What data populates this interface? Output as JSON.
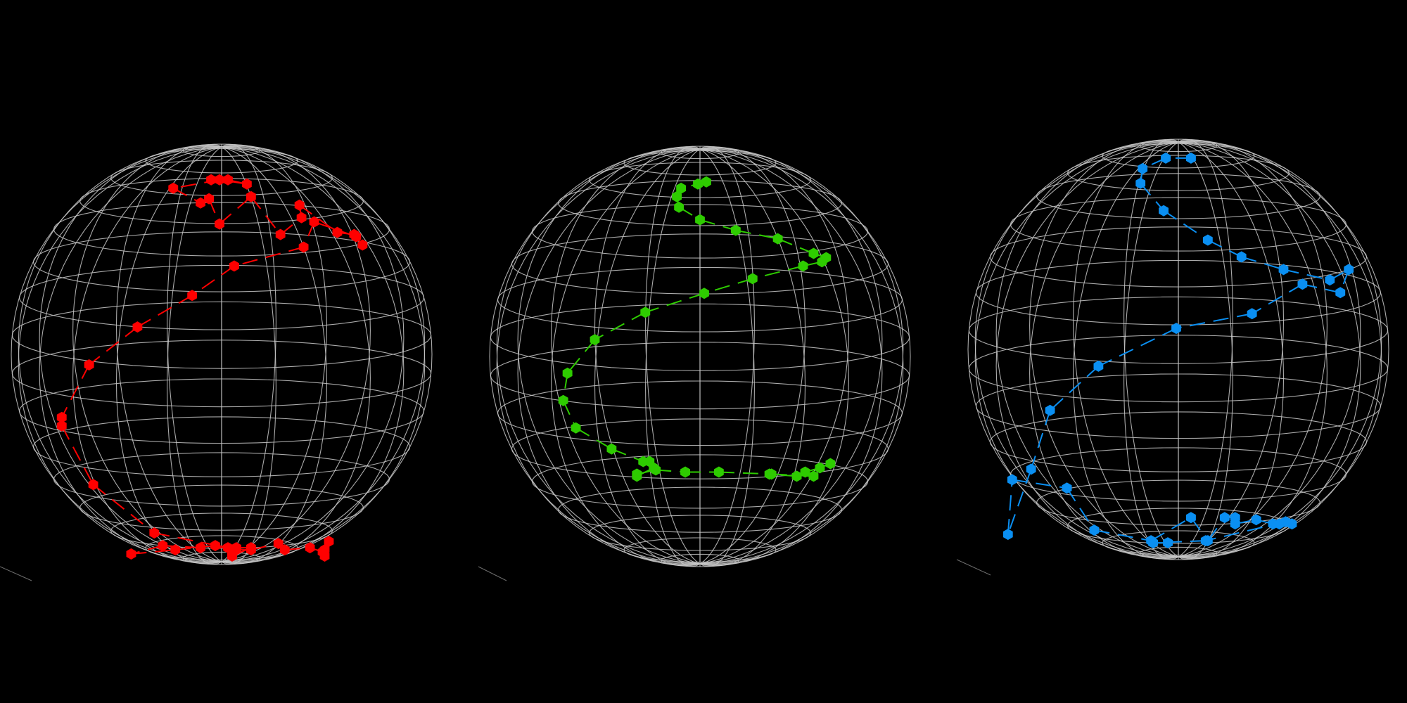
{
  "background_color": "#000000",
  "wireframe_color": "#c8c8c8",
  "corner_tick_color": "#6e6e6e",
  "marker_shape": "hexagon",
  "line_style": "dashed",
  "grid": {
    "latitude_lines": 17,
    "longitude_lines": 24
  },
  "spheres": [
    {
      "name": "red-sphere",
      "color": "#ff0000",
      "points": [
        [
          -0.05,
          -0.83
        ],
        [
          0.03,
          -0.83
        ],
        [
          0.12,
          -0.81
        ],
        [
          -0.01,
          -0.83
        ],
        [
          -0.23,
          -0.79
        ],
        [
          -0.1,
          -0.72
        ],
        [
          -0.06,
          -0.74
        ],
        [
          -0.01,
          -0.62
        ],
        [
          0.14,
          -0.75
        ],
        [
          0.28,
          -0.57
        ],
        [
          0.38,
          -0.65
        ],
        [
          0.37,
          -0.71
        ],
        [
          0.55,
          -0.58
        ],
        [
          0.63,
          -0.57
        ],
        [
          0.67,
          -0.52
        ],
        [
          0.64,
          -0.56
        ],
        [
          0.44,
          -0.63
        ],
        [
          0.39,
          -0.51
        ],
        [
          0.06,
          -0.42
        ],
        [
          -0.14,
          -0.28
        ],
        [
          -0.4,
          -0.13
        ],
        [
          -0.63,
          0.05
        ],
        [
          -0.76,
          0.3
        ],
        [
          -0.76,
          0.34
        ],
        [
          -0.61,
          0.62
        ],
        [
          -0.32,
          0.85
        ],
        [
          0.03,
          0.92
        ],
        [
          -0.1,
          0.92
        ],
        [
          -0.28,
          0.91
        ],
        [
          -0.43,
          0.95
        ],
        [
          -0.22,
          0.93
        ],
        [
          -0.03,
          0.91
        ],
        [
          0.07,
          0.92
        ],
        [
          0.14,
          0.92
        ],
        [
          0.05,
          0.96
        ],
        [
          0.07,
          0.93
        ],
        [
          0.14,
          0.93
        ],
        [
          0.27,
          0.9
        ],
        [
          0.3,
          0.93
        ],
        [
          0.42,
          0.92
        ],
        [
          0.48,
          0.94
        ],
        [
          0.51,
          0.89
        ],
        [
          0.49,
          0.93
        ],
        [
          0.49,
          0.96
        ]
      ]
    },
    {
      "name": "green-sphere",
      "color": "#2ecc00",
      "points": [
        [
          -0.01,
          -0.82
        ],
        [
          0.03,
          -0.83
        ],
        [
          -0.09,
          -0.8
        ],
        [
          -0.11,
          -0.76
        ],
        [
          -0.1,
          -0.71
        ],
        [
          0.0,
          -0.65
        ],
        [
          0.17,
          -0.6
        ],
        [
          0.37,
          -0.56
        ],
        [
          0.54,
          -0.49
        ],
        [
          0.6,
          -0.47
        ],
        [
          0.58,
          -0.45
        ],
        [
          0.49,
          -0.43
        ],
        [
          0.25,
          -0.37
        ],
        [
          0.02,
          -0.3
        ],
        [
          -0.26,
          -0.21
        ],
        [
          -0.5,
          -0.08
        ],
        [
          -0.63,
          0.08
        ],
        [
          -0.65,
          0.21
        ],
        [
          -0.59,
          0.34
        ],
        [
          -0.42,
          0.44
        ],
        [
          -0.27,
          0.5
        ],
        [
          -0.24,
          0.5
        ],
        [
          -0.22,
          0.53
        ],
        [
          -0.3,
          0.57
        ],
        [
          -0.3,
          0.56
        ],
        [
          -0.21,
          0.54
        ],
        [
          -0.07,
          0.55
        ],
        [
          0.09,
          0.55
        ],
        [
          0.34,
          0.56
        ],
        [
          0.54,
          0.57
        ],
        [
          0.5,
          0.55
        ],
        [
          0.57,
          0.53
        ],
        [
          0.62,
          0.51
        ],
        [
          0.46,
          0.57
        ],
        [
          0.33,
          0.56
        ]
      ]
    },
    {
      "name": "blue-sphere",
      "color": "#0a8ff2",
      "points": [
        [
          0.06,
          -0.91
        ],
        [
          -0.06,
          -0.91
        ],
        [
          -0.17,
          -0.86
        ],
        [
          -0.18,
          -0.79
        ],
        [
          -0.07,
          -0.66
        ],
        [
          0.14,
          -0.52
        ],
        [
          0.3,
          -0.44
        ],
        [
          0.5,
          -0.38
        ],
        [
          0.72,
          -0.33
        ],
        [
          0.81,
          -0.38
        ],
        [
          0.77,
          -0.27
        ],
        [
          0.59,
          -0.31
        ],
        [
          0.35,
          -0.17
        ],
        [
          -0.01,
          -0.1
        ],
        [
          -0.38,
          0.08
        ],
        [
          -0.61,
          0.29
        ],
        [
          -0.7,
          0.57
        ],
        [
          -0.81,
          0.88
        ],
        [
          -0.79,
          0.62
        ],
        [
          -0.53,
          0.66
        ],
        [
          -0.4,
          0.86
        ],
        [
          -0.13,
          0.91
        ],
        [
          0.06,
          0.8
        ],
        [
          0.14,
          0.91
        ],
        [
          0.22,
          0.8
        ],
        [
          0.27,
          0.8
        ],
        [
          0.27,
          0.83
        ],
        [
          0.37,
          0.81
        ],
        [
          0.45,
          0.83
        ],
        [
          0.54,
          0.83
        ],
        [
          0.48,
          0.83
        ],
        [
          0.51,
          0.82
        ],
        [
          0.13,
          0.91
        ],
        [
          -0.12,
          0.92
        ],
        [
          -0.12,
          0.92
        ],
        [
          -0.05,
          0.92
        ]
      ]
    }
  ]
}
